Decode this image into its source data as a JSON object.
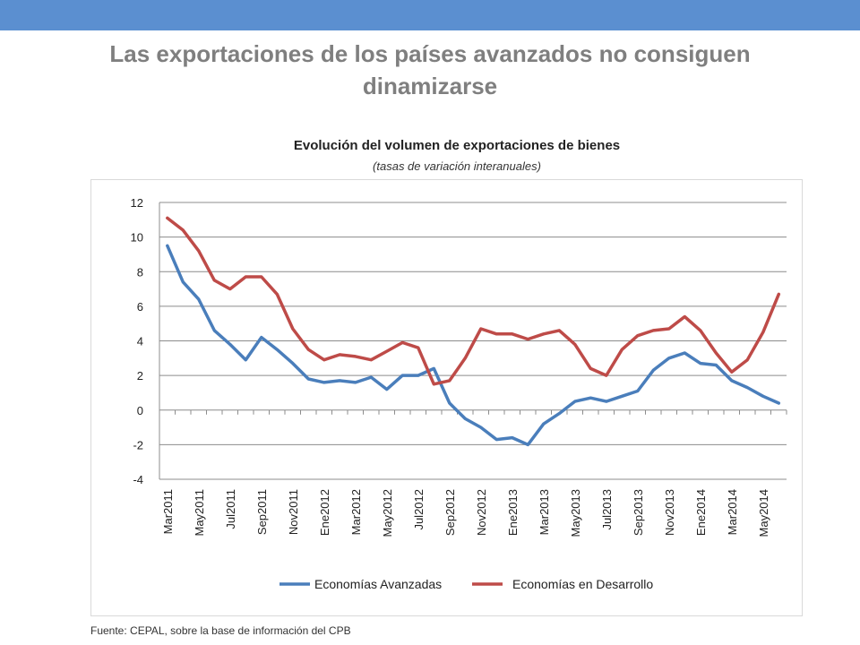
{
  "header": {
    "title": "Las exportaciones de los países avanzados no consiguen dinamizarse"
  },
  "footer": {
    "source": "Fuente: CEPAL, sobre la base de información del CPB"
  },
  "colors": {
    "header_bar": "#5b8fd0",
    "title_text": "#7f7f7f",
    "series_advanced": "#4a7ebb",
    "series_developing": "#be4b48",
    "grid": "#8c8c8c"
  },
  "chart_data": {
    "type": "line",
    "title": "Evolución del volumen de exportaciones de bienes",
    "subtitle": "(tasas de variación interanuales)",
    "xlabel": "",
    "ylabel": "",
    "ylim": [
      -4,
      12
    ],
    "yticks": [
      12,
      10,
      8,
      6,
      4,
      2,
      0,
      -2,
      -4
    ],
    "grid": true,
    "legend": "bottom",
    "x": [
      "Mar2011",
      "Abr2011",
      "May2011",
      "Jun2011",
      "Jul2011",
      "Ago2011",
      "Sep2011",
      "Oct2011",
      "Nov2011",
      "Dic2011",
      "Ene2012",
      "Feb2012",
      "Mar2012",
      "Abr2012",
      "May2012",
      "Jun2012",
      "Jul2012",
      "Ago2012",
      "Sep2012",
      "Oct2012",
      "Nov2012",
      "Dic2012",
      "Ene2013",
      "Feb2013",
      "Mar2013",
      "Abr2013",
      "May2013",
      "Jun2013",
      "Jul2013",
      "Ago2013",
      "Sep2013",
      "Oct2013",
      "Nov2013",
      "Dic2013",
      "Ene2014",
      "Feb2014",
      "Mar2014",
      "Abr2014",
      "May2014",
      "Jun2014"
    ],
    "x_tick_labels": [
      "Mar2011",
      "May2011",
      "Jul2011",
      "Sep2011",
      "Nov2011",
      "Ene2012",
      "Mar2012",
      "May2012",
      "Jul2012",
      "Sep2012",
      "Nov2012",
      "Ene2013",
      "Mar2013",
      "May2013",
      "Jul2013",
      "Sep2013",
      "Nov2013",
      "Ene2014",
      "Mar2014",
      "May2014"
    ],
    "series": [
      {
        "name": "Economías Avanzadas",
        "color": "#4a7ebb",
        "values": [
          9.5,
          7.4,
          6.4,
          4.6,
          3.8,
          2.9,
          4.2,
          3.5,
          2.7,
          1.8,
          1.6,
          1.7,
          1.6,
          1.9,
          1.2,
          2.0,
          2.0,
          2.4,
          0.4,
          -0.5,
          -1.0,
          -1.7,
          -1.6,
          -2.0,
          -0.8,
          -0.2,
          0.5,
          0.7,
          0.5,
          0.8,
          1.1,
          2.3,
          3.0,
          3.3,
          2.7,
          2.6,
          1.7,
          1.3,
          0.8,
          0.4
        ]
      },
      {
        "name": "Economías en Desarrollo",
        "color": "#be4b48",
        "values": [
          11.1,
          10.4,
          9.2,
          7.5,
          7.0,
          7.7,
          7.7,
          6.7,
          4.7,
          3.5,
          2.9,
          3.2,
          3.1,
          2.9,
          3.4,
          3.9,
          3.6,
          1.5,
          1.7,
          3.0,
          4.7,
          4.4,
          4.4,
          4.1,
          4.4,
          4.6,
          3.8,
          2.4,
          2.0,
          3.5,
          4.3,
          4.6,
          4.7,
          5.4,
          4.6,
          3.3,
          2.2,
          2.9,
          4.5,
          6.7
        ]
      }
    ]
  }
}
